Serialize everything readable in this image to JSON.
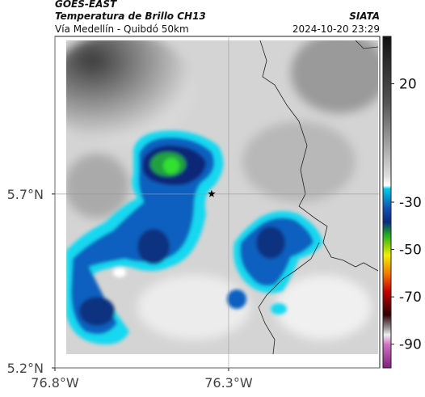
{
  "header": {
    "title": "GOES-EAST",
    "subtitle": "Temperatura de Brillo CH13",
    "region": "Vía Medellín - Quibdó 50km",
    "source": "SIATA",
    "datetime": "2024-10-20 23:29"
  },
  "map": {
    "xlim": [
      -76.8,
      -75.865
    ],
    "ylim": [
      5.2,
      6.153
    ],
    "xticks": [
      {
        "value": -76.8,
        "label": "76.8°W"
      },
      {
        "value": -76.3,
        "label": "76.3°W"
      }
    ],
    "yticks": [
      {
        "value": 5.2,
        "label": "5.2°N"
      },
      {
        "value": 5.7,
        "label": "5.7°N"
      }
    ],
    "grid": true,
    "marker": {
      "lon": -76.349,
      "lat": 5.7
    }
  },
  "colorbar": {
    "lim": [
      40,
      -100
    ],
    "ticks": [
      20,
      -30,
      -50,
      -70,
      -90
    ]
  }
}
